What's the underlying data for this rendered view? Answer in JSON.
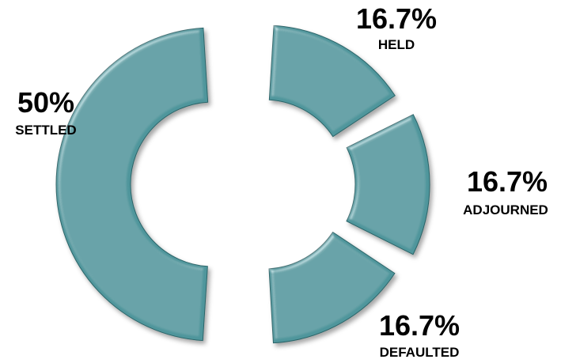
{
  "chart_data": {
    "type": "pie",
    "variant": "exploded-donut",
    "title": "",
    "slice_color": "#4f969c",
    "slices": [
      {
        "label": "SETTLED",
        "percent_label": "50%",
        "value": 50
      },
      {
        "label": "HELD",
        "percent_label": "16.7%",
        "value": 16.7
      },
      {
        "label": "ADJOURNED",
        "percent_label": "16.7%",
        "value": 16.7
      },
      {
        "label": "DEFAULTED",
        "percent_label": "16.7%",
        "value": 16.7
      }
    ]
  }
}
